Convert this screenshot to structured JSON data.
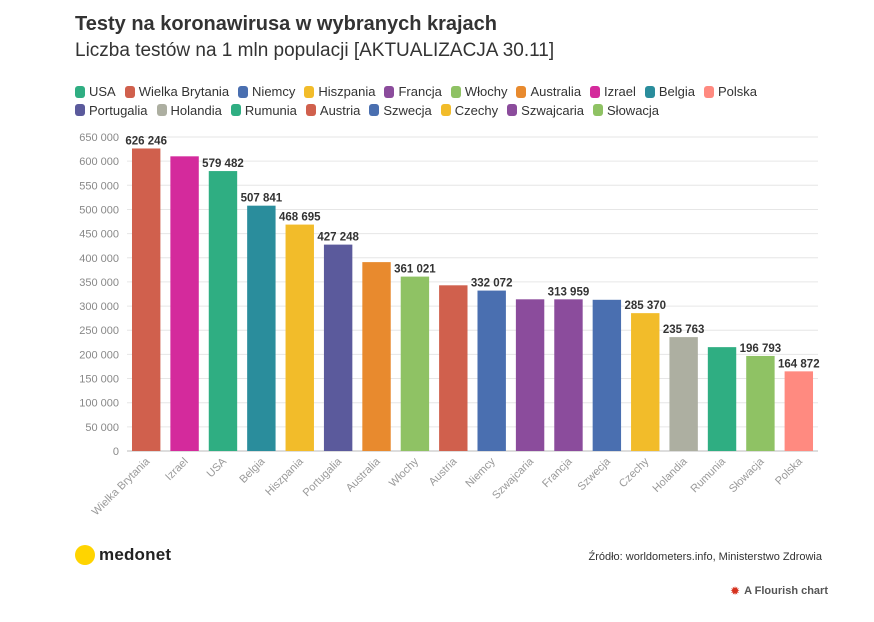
{
  "title": "Testy na koronawirusa w wybranych krajach",
  "subtitle": "Liczba testów na 1 mln populacji [AKTUALIZACJA 30.11]",
  "legend": [
    {
      "label": "USA",
      "color": "#2fae82"
    },
    {
      "label": "Wielka Brytania",
      "color": "#d0604d"
    },
    {
      "label": "Niemcy",
      "color": "#4a6fb0"
    },
    {
      "label": "Hiszpania",
      "color": "#f2bc2a"
    },
    {
      "label": "Francja",
      "color": "#8b4c9c"
    },
    {
      "label": "Włochy",
      "color": "#8fc264"
    },
    {
      "label": "Australia",
      "color": "#e88a2e"
    },
    {
      "label": "Izrael",
      "color": "#d42a9c"
    },
    {
      "label": "Belgia",
      "color": "#2a8d9c"
    },
    {
      "label": "Polska",
      "color": "#ff8a80"
    },
    {
      "label": "Portugalia",
      "color": "#5b5a9c"
    },
    {
      "label": "Holandia",
      "color": "#adafa1"
    },
    {
      "label": "Rumunia",
      "color": "#2fae82"
    },
    {
      "label": "Austria",
      "color": "#d0604d"
    },
    {
      "label": "Szwecja",
      "color": "#4a6fb0"
    },
    {
      "label": "Czechy",
      "color": "#f2bc2a"
    },
    {
      "label": "Szwajcaria",
      "color": "#8b4c9c"
    },
    {
      "label": "Słowacja",
      "color": "#8fc264"
    }
  ],
  "chart_data": {
    "type": "bar",
    "categories": [
      "Wielka Brytania",
      "Izrael",
      "USA",
      "Belgia",
      "Hiszpania",
      "Portugalia",
      "Australia",
      "Włochy",
      "Austria",
      "Niemcy",
      "Szwajcaria",
      "Francja",
      "Szwecja",
      "Czechy",
      "Holandia",
      "Rumunia",
      "Słowacja",
      "Polska"
    ],
    "values": [
      626246,
      610000,
      579482,
      507841,
      468695,
      427248,
      391000,
      361021,
      343000,
      332072,
      314000,
      313959,
      313000,
      285370,
      235763,
      215000,
      196793,
      164872
    ],
    "data_labels": [
      "626 246",
      "",
      "579 482",
      "507 841",
      "468 695",
      "427 248",
      "",
      "361 021",
      "",
      "332 072",
      "",
      "313 959",
      "",
      "285 370",
      "235 763",
      "",
      "196 793",
      "164 872"
    ],
    "colors": [
      "#d0604d",
      "#d42a9c",
      "#2fae82",
      "#2a8d9c",
      "#f2bc2a",
      "#5b5a9c",
      "#e88a2e",
      "#8fc264",
      "#d0604d",
      "#4a6fb0",
      "#8b4c9c",
      "#8b4c9c",
      "#4a6fb0",
      "#f2bc2a",
      "#adafa1",
      "#2fae82",
      "#8fc264",
      "#ff8a80"
    ],
    "y_ticks": [
      0,
      50000,
      100000,
      150000,
      200000,
      250000,
      300000,
      350000,
      400000,
      450000,
      500000,
      550000,
      600000,
      650000
    ],
    "y_tick_labels": [
      "0",
      "50 000",
      "100 000",
      "150 000",
      "200 000",
      "250 000",
      "300 000",
      "350 000",
      "400 000",
      "450 000",
      "500 000",
      "550 000",
      "600 000",
      "650 000"
    ],
    "ylim": [
      0,
      650000
    ],
    "grid": true,
    "legend_position": "top"
  },
  "footer": {
    "logo": "medonet",
    "source": "Źródło: worldometers.info, Ministerstwo Zdrowia",
    "credit": "A Flourish chart"
  }
}
